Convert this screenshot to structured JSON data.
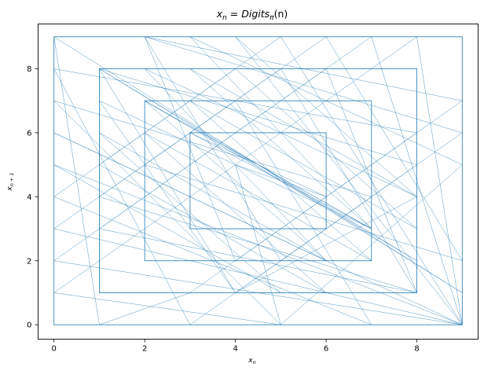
{
  "chart_data": {
    "type": "line",
    "title": {
      "lhs": "x",
      "lhs_sub": "n",
      "eq": " = ",
      "func": "Digits",
      "func_sub": "π",
      "arg": "(n)"
    },
    "xlabel": {
      "base": "x",
      "sub": "n"
    },
    "ylabel": {
      "base": "x",
      "sub": "n + 1"
    },
    "xlim": [
      -0.35,
      9.35
    ],
    "ylim": [
      -0.45,
      9.4
    ],
    "xticks": [
      0,
      2,
      4,
      6,
      8
    ],
    "yticks": [
      0,
      2,
      4,
      6,
      8
    ],
    "grid": false,
    "line_color": "#1f77b4",
    "series": [
      {
        "x": [
          0,
          9,
          1,
          8,
          2,
          7,
          3,
          6,
          4,
          5,
          0,
          1,
          2,
          3,
          4,
          5,
          6,
          7,
          8,
          9,
          0,
          2,
          4,
          6,
          8,
          1,
          3,
          5,
          7,
          9,
          0,
          3,
          6,
          9,
          2,
          5,
          8,
          1,
          4,
          7,
          0,
          4,
          8,
          3,
          7,
          2,
          6,
          1,
          5,
          9,
          0,
          5,
          1,
          6,
          2,
          7,
          3,
          8,
          4,
          9,
          0,
          6,
          2,
          8,
          4,
          1,
          7,
          3,
          9,
          5,
          0,
          7,
          4,
          1,
          8,
          5,
          2,
          9,
          6,
          3,
          0,
          8,
          6,
          4,
          2,
          9,
          7,
          5,
          3,
          1,
          0
        ],
        "y": [
          9,
          1,
          8,
          2,
          7,
          3,
          6,
          4,
          5,
          0,
          1,
          2,
          3,
          4,
          5,
          6,
          7,
          8,
          9,
          0,
          2,
          4,
          6,
          8,
          1,
          3,
          5,
          7,
          9,
          0,
          3,
          6,
          9,
          2,
          5,
          8,
          1,
          4,
          7,
          0,
          4,
          8,
          3,
          7,
          2,
          6,
          1,
          5,
          9,
          0,
          5,
          1,
          6,
          2,
          7,
          3,
          8,
          4,
          9,
          0,
          6,
          2,
          8,
          4,
          1,
          7,
          3,
          9,
          5,
          0,
          7,
          4,
          1,
          8,
          5,
          2,
          9,
          6,
          3,
          0,
          8,
          6,
          4,
          2,
          9,
          7,
          5,
          3,
          1,
          0,
          9
        ]
      }
    ],
    "nested_squares": [
      {
        "x0": 0,
        "y0": 0,
        "x1": 9,
        "y1": 9
      },
      {
        "x0": 1,
        "y0": 1,
        "x1": 8,
        "y1": 8
      },
      {
        "x0": 2,
        "y0": 2,
        "x1": 7,
        "y1": 7
      },
      {
        "x0": 3,
        "y0": 3,
        "x1": 6,
        "y1": 6
      }
    ]
  }
}
